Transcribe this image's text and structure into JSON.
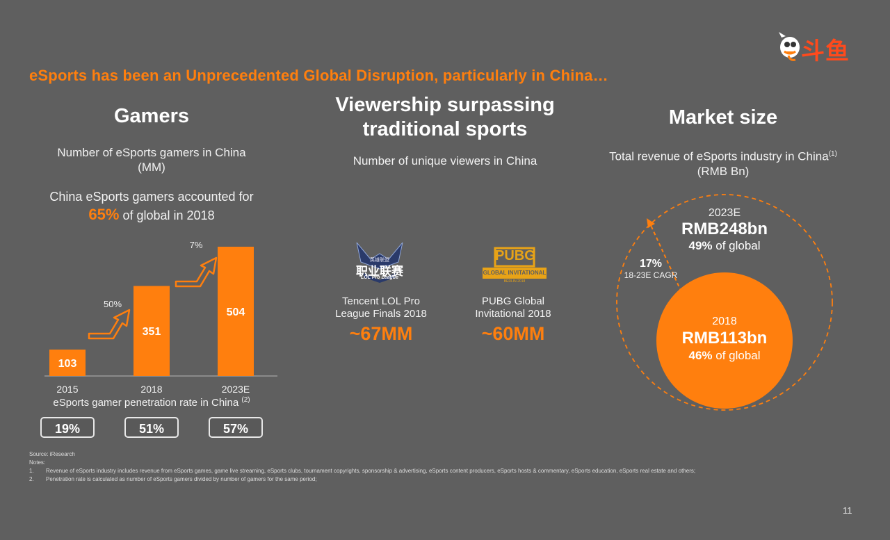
{
  "page": {
    "headline": "eSports has been an Unprecedented Global Disruption, particularly in China…",
    "page_number": "11",
    "logo_text": "斗鱼"
  },
  "gamers": {
    "title": "Gamers",
    "subtitle_line1": "Number of eSports gamers in China",
    "subtitle_line2": "(MM)",
    "callout_line1": "China eSports gamers accounted for",
    "callout_pct": "65%",
    "callout_line2_rest": " of global in 2018",
    "penetration_title": "eSports gamer penetration rate in China",
    "penetration_note": "(2)",
    "penetration": [
      "19%",
      "51%",
      "57%"
    ],
    "growth_labels": [
      "50%",
      "7%"
    ]
  },
  "chart_data": {
    "type": "bar",
    "categories": [
      "2015",
      "2018",
      "2023E"
    ],
    "values": [
      103,
      351,
      504
    ],
    "labels": [
      "103",
      "351",
      "504"
    ],
    "ylim": [
      0,
      504
    ]
  },
  "viewership": {
    "title_line1": "Viewership surpassing",
    "title_line2": "traditional sports",
    "subtitle": "Number of unique viewers in China",
    "events": [
      {
        "logo_main": "职业联赛",
        "logo_top": "英雄联盟",
        "logo_sub": "LOL Pro League",
        "name_line1": "Tencent LOL Pro",
        "name_line2": "League Finals 2018",
        "value": "~67MM"
      },
      {
        "logo_main": "PUBG",
        "logo_sub": "GLOBAL INVITATIONAL",
        "logo_small": "BERLIN 2018",
        "name_line1": "PUBG Global",
        "name_line2": "Invitational 2018",
        "value": "~60MM"
      }
    ]
  },
  "market": {
    "title": "Market size",
    "subtitle_line1": "Total revenue of eSports industry in China",
    "subtitle_note": "(1)",
    "subtitle_line2": "(RMB Bn)",
    "outer_year": "2023E",
    "outer_value": "RMB248bn",
    "outer_pct": "49%",
    "outer_pct_suffix": " of global",
    "inner_year": "2018",
    "inner_value": "RMB113bn",
    "inner_pct": "46%",
    "inner_pct_suffix": " of global",
    "cagr": "17%",
    "cagr_label": "18-23E CAGR",
    "colors": {
      "accent": "#ff7f0e",
      "background": "#5f5f5f"
    }
  },
  "footnotes": {
    "source": "Source: iResearch",
    "notes_label": "Notes:",
    "note1_num": "1.",
    "note1": "Revenue of eSports industry includes revenue from eSports games, game  live streaming, eSports clubs, tournament copyrights, sponsorship & advertising, eSports content producers, eSports hosts & commentary, eSports education, eSports real estate and others;",
    "note2_num": "2.",
    "note2": "Penetration rate is calculated as number of eSports gamers divided by number of gamers for the same period;"
  }
}
